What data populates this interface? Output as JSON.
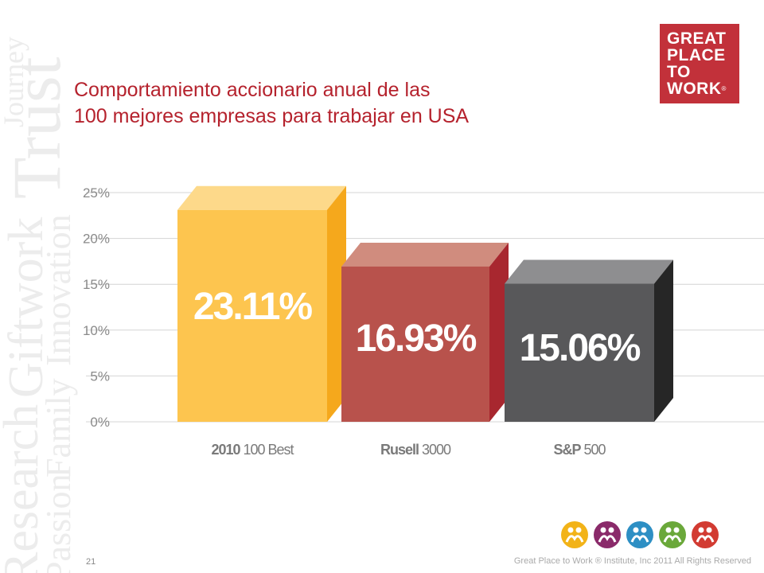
{
  "watermark": {
    "words": [
      "Research",
      "Giftwork",
      "Trust",
      "Passion",
      "Family",
      "Innovation",
      "Journey"
    ],
    "color": "#ececec"
  },
  "logo": {
    "lines": [
      "GREAT",
      "PLACE",
      "TO",
      "WORK"
    ],
    "registered": "®",
    "color": "#c2313a"
  },
  "title": {
    "line1": "Comportamiento accionario anual de las",
    "line2": "100 mejores empresas para trabajar en USA",
    "color": "#b5222d"
  },
  "chart_data": {
    "type": "bar",
    "title": "",
    "xlabel": "",
    "ylabel": "",
    "ylim": [
      0,
      25
    ],
    "yticks": [
      "0%",
      "5%",
      "10%",
      "15%",
      "20%",
      "25%"
    ],
    "yticks_values": [
      0,
      5,
      10,
      15,
      20,
      25
    ],
    "grid": true,
    "categories": [
      {
        "bold": "2010",
        "rest": " 100 Best"
      },
      {
        "bold": "Rusell",
        "rest": " 3000"
      },
      {
        "bold": "S&P",
        "rest": " 500"
      }
    ],
    "values": [
      23.11,
      16.93,
      15.06
    ],
    "data_labels": [
      "23.11%",
      "16.93%",
      "15.06%"
    ],
    "colors": [
      {
        "front": "#fdc54f",
        "top": "#fdd98a",
        "side": "#f5a81c"
      },
      {
        "front": "#b8524c",
        "top": "#d08c7e",
        "side": "#a8272f"
      },
      {
        "front": "#58585a",
        "top": "#8e8e90",
        "side": "#262626"
      }
    ]
  },
  "icons": {
    "names": [
      "yellow-people-icon",
      "purple-people-icon",
      "blue-people-icon",
      "green-people-icon",
      "red-people-icon"
    ],
    "colors": [
      "#f2b318",
      "#8a2a6a",
      "#2d8fc4",
      "#6aa83a",
      "#d23b32"
    ]
  },
  "page_number": "21",
  "footer": "Great Place to Work ® Institute, Inc 2011 All Rights Reserved"
}
